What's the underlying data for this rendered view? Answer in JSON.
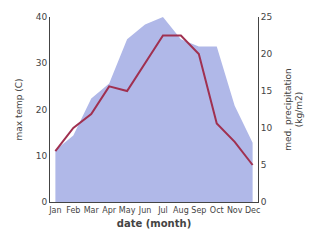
{
  "chart_data": {
    "type": "line",
    "xlabel": "date (month)",
    "ylabel": "max temp (C)",
    "y2label": "med. precipitation\n(kg/m2)",
    "categories": [
      "Jan",
      "Feb",
      "Mar",
      "Apr",
      "May",
      "Jun",
      "Jul",
      "Aug",
      "Sep",
      "Oct",
      "Nov",
      "Dec"
    ],
    "series": [
      {
        "type": "area",
        "axis": "y2",
        "color": "#b0b8e8",
        "values": [
          7,
          9,
          14,
          16,
          22,
          24,
          25,
          22,
          21,
          21,
          13,
          8
        ]
      },
      {
        "type": "line",
        "color": "#a03050",
        "values": [
          11,
          16,
          19,
          25,
          24,
          30,
          36,
          36,
          32,
          17,
          13,
          8
        ]
      }
    ],
    "ylim": [
      0,
      40
    ],
    "yticks": [
      0,
      10,
      20,
      30,
      40
    ],
    "y2lim": [
      0,
      25
    ],
    "y2ticks": [
      0,
      5,
      10,
      15,
      20,
      25
    ],
    "grid": false
  }
}
